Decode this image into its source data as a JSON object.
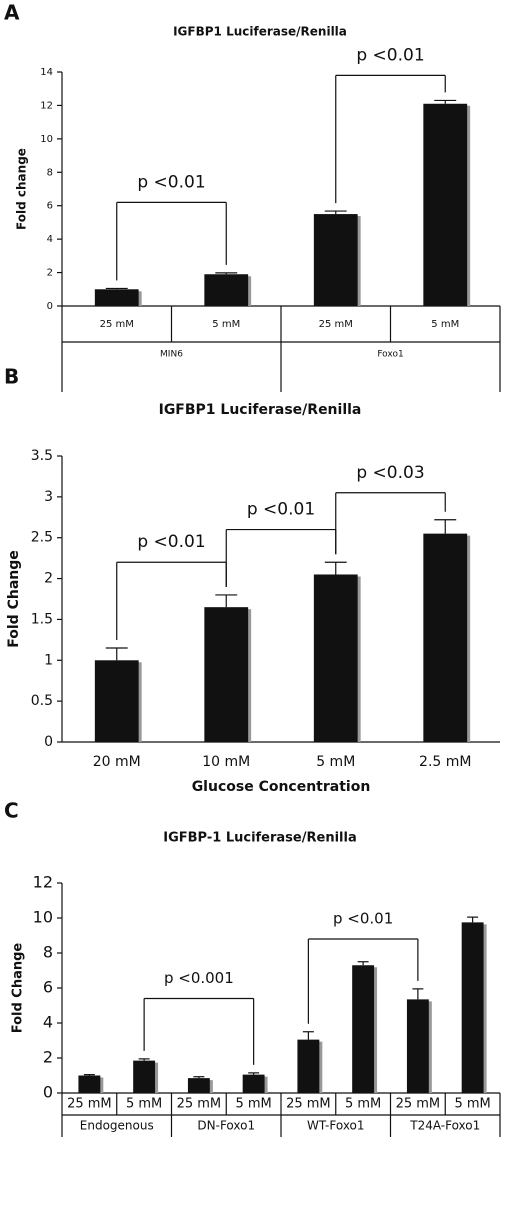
{
  "chart_data": [
    {
      "type": "bar",
      "panel": "A",
      "title": "IGFBP1 Luciferase/Renilla",
      "y_label": "Fold change",
      "categories": [
        "25 mM",
        "5 mM",
        "25 mM",
        "5 mM"
      ],
      "groups": [
        "MIN6",
        "Foxo1"
      ],
      "values": [
        1.0,
        1.9,
        5.5,
        12.1
      ],
      "errors": [
        0.05,
        0.08,
        0.18,
        0.2
      ],
      "color": "#111111",
      "ylim": [
        0,
        14
      ],
      "yticks": [
        0,
        2,
        4,
        6,
        8,
        10,
        12,
        14
      ],
      "annotations": [
        {
          "text": "p <0.01",
          "from": 0,
          "to": 1,
          "y": 6.2
        },
        {
          "text": "p <0.01",
          "from": 2,
          "to": 3,
          "y": 13.8
        }
      ]
    },
    {
      "type": "bar",
      "panel": "B",
      "title": "IGFBP1 Luciferase/Renilla",
      "y_label": "Fold Change",
      "x_label": "Glucose Concentration",
      "categories": [
        "20 mM",
        "10 mM",
        "5 mM",
        "2.5 mM"
      ],
      "values": [
        1.0,
        1.65,
        2.05,
        2.55
      ],
      "errors": [
        0.15,
        0.15,
        0.15,
        0.17
      ],
      "color": "#111111",
      "ylim": [
        0,
        3.5
      ],
      "yticks": [
        0,
        0.5,
        1,
        1.5,
        2,
        2.5,
        3,
        3.5
      ],
      "annotations": [
        {
          "text": "p <0.01",
          "from": 0,
          "to": 1,
          "y": 2.2
        },
        {
          "text": "p <0.01",
          "from": 1,
          "to": 2,
          "y": 2.6
        },
        {
          "text": "p <0.03",
          "from": 2,
          "to": 3,
          "y": 3.05
        }
      ]
    },
    {
      "type": "bar",
      "panel": "C",
      "title": "IGFBP-1 Luciferase/Renilla",
      "y_label": "Fold Change",
      "categories": [
        "25 mM",
        "5 mM",
        "25 mM",
        "5 mM",
        "25 mM",
        "5 mM",
        "25 mM",
        "5 mM"
      ],
      "groups": [
        "Endogenous",
        "DN-Foxo1",
        "WT-Foxo1",
        "T24A-Foxo1"
      ],
      "values": [
        1.0,
        1.85,
        0.85,
        1.05,
        3.05,
        7.3,
        5.35,
        9.75
      ],
      "errors": [
        0.05,
        0.1,
        0.08,
        0.1,
        0.45,
        0.2,
        0.6,
        0.3
      ],
      "color": "#111111",
      "ylim": [
        0,
        12
      ],
      "yticks": [
        0,
        2,
        4,
        6,
        8,
        10,
        12
      ],
      "annotations": [
        {
          "text": "p <0.001",
          "from": 1,
          "to": 3,
          "y": 5.4
        },
        {
          "text": "p <0.01",
          "from": 4,
          "to": 6,
          "y": 8.8
        }
      ]
    }
  ]
}
